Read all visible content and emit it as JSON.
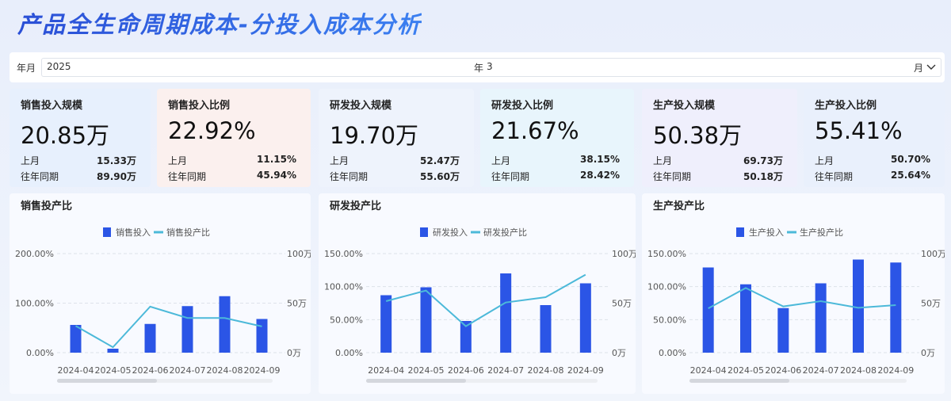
{
  "header": {
    "title": "产品全生命周期成本-分投入成本分析"
  },
  "filter": {
    "label": "年月",
    "year": "2025",
    "year_unit": "年",
    "month": "3",
    "month_unit": "月"
  },
  "kpis": [
    {
      "title": "销售投入规模",
      "value": "20.85万",
      "items": [
        {
          "label": "上月",
          "value": "15.33万"
        },
        {
          "label": "往年同期",
          "value": "89.90万"
        }
      ]
    },
    {
      "title": "销售投入比例",
      "value": "22.92%",
      "items": [
        {
          "label": "上月",
          "value": "11.15%"
        },
        {
          "label": "往年同期",
          "value": "45.94%"
        }
      ]
    },
    {
      "title": "研发投入规模",
      "value": "19.70万",
      "items": [
        {
          "label": "上月",
          "value": "52.47万"
        },
        {
          "label": "往年同期",
          "value": "55.60万"
        }
      ]
    },
    {
      "title": "研发投入比例",
      "value": "21.67%",
      "items": [
        {
          "label": "上月",
          "value": "38.15%"
        },
        {
          "label": "往年同期",
          "value": "28.42%"
        }
      ]
    },
    {
      "title": "生产投入规模",
      "value": "50.38万",
      "items": [
        {
          "label": "上月",
          "value": "69.73万"
        },
        {
          "label": "往年同期",
          "value": "50.18万"
        }
      ]
    },
    {
      "title": "生产投入比例",
      "value": "55.41%",
      "items": [
        {
          "label": "上月",
          "value": "50.70%"
        },
        {
          "label": "往年同期",
          "value": "25.64%"
        }
      ]
    }
  ],
  "chart_data": [
    {
      "type": "bar",
      "title": "销售投产比",
      "categories": [
        "2024-04",
        "2024-05",
        "2024-06",
        "2024-07",
        "2024-08",
        "2024-09"
      ],
      "series": [
        {
          "name": "销售投入",
          "color": "#2b55e6",
          "axis": "y2",
          "values": [
            28,
            4,
            29,
            47,
            57,
            34
          ]
        },
        {
          "name": "销售投产比",
          "color": "#4cb9d9",
          "type": "line",
          "values": [
            54,
            11,
            93,
            70,
            70,
            53
          ]
        }
      ],
      "ylim": [
        0,
        200
      ],
      "yticks": [
        {
          "value": 0,
          "label": "0.00%"
        },
        {
          "value": 100,
          "label": "100.00%"
        },
        {
          "value": 200,
          "label": "200.00%"
        }
      ],
      "y2lim": [
        0,
        100
      ],
      "y2ticks": [
        {
          "value": 0,
          "label": "0万"
        },
        {
          "value": 50,
          "label": "50万"
        },
        {
          "value": 100,
          "label": "100万"
        }
      ],
      "grid": true
    },
    {
      "type": "bar",
      "title": "研发投产比",
      "categories": [
        "2024-04",
        "2024-05",
        "2024-06",
        "2024-07",
        "2024-08",
        "2024-09"
      ],
      "series": [
        {
          "name": "研发投入",
          "color": "#2b55e6",
          "axis": "y2",
          "values": [
            58,
            66,
            32,
            80,
            48,
            70
          ]
        },
        {
          "name": "研发投产比",
          "color": "#4cb9d9",
          "type": "line",
          "values": [
            78,
            94,
            40,
            76,
            84,
            118
          ]
        }
      ],
      "ylim": [
        0,
        150
      ],
      "yticks": [
        {
          "value": 0,
          "label": "0.00%"
        },
        {
          "value": 50,
          "label": "50.00%"
        },
        {
          "value": 100,
          "label": "100.00%"
        },
        {
          "value": 150,
          "label": "150.00%"
        }
      ],
      "y2lim": [
        0,
        100
      ],
      "y2ticks": [
        {
          "value": 0,
          "label": "0万"
        },
        {
          "value": 50,
          "label": "50万"
        },
        {
          "value": 100,
          "label": "100万"
        }
      ],
      "grid": true
    },
    {
      "type": "bar",
      "title": "生产投产比",
      "categories": [
        "2024-04",
        "2024-05",
        "2024-06",
        "2024-07",
        "2024-08",
        "2024-09"
      ],
      "series": [
        {
          "name": "生产投入",
          "color": "#2b55e6",
          "axis": "y2",
          "values": [
            86,
            69,
            45,
            70,
            94,
            91
          ]
        },
        {
          "name": "生产投产比",
          "color": "#4cb9d9",
          "type": "line",
          "values": [
            67,
            98,
            70,
            78,
            68,
            72
          ]
        }
      ],
      "ylim": [
        0,
        150
      ],
      "yticks": [
        {
          "value": 0,
          "label": "0.00%"
        },
        {
          "value": 50,
          "label": "50.00%"
        },
        {
          "value": 100,
          "label": "100.00%"
        },
        {
          "value": 150,
          "label": "150.00%"
        }
      ],
      "y2lim": [
        0,
        100
      ],
      "y2ticks": [
        {
          "value": 0,
          "label": "0万"
        },
        {
          "value": 50,
          "label": "50万"
        },
        {
          "value": 100,
          "label": "100万"
        }
      ],
      "grid": true
    }
  ]
}
